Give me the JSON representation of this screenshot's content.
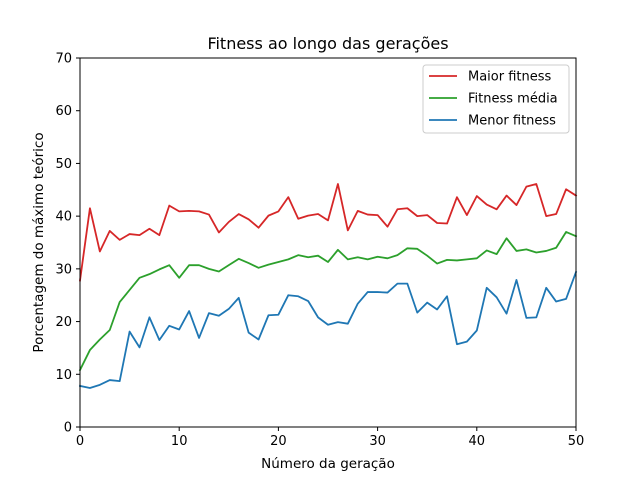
{
  "chart_data": {
    "type": "line",
    "title": "Fitness ao longo das gerações",
    "xlabel": "Número da geração",
    "ylabel": "Porcentagem do máximo teórico",
    "xlim": [
      0,
      50
    ],
    "ylim": [
      0,
      70
    ],
    "xticks": [
      0,
      10,
      20,
      30,
      40,
      50
    ],
    "yticks": [
      0,
      10,
      20,
      30,
      40,
      50,
      60,
      70
    ],
    "grid": false,
    "legend_position": "top-right",
    "x": [
      0,
      1,
      2,
      3,
      4,
      5,
      6,
      7,
      8,
      9,
      10,
      11,
      12,
      13,
      14,
      15,
      16,
      17,
      18,
      19,
      20,
      21,
      22,
      23,
      24,
      25,
      26,
      27,
      28,
      29,
      30,
      31,
      32,
      33,
      34,
      35,
      36,
      37,
      38,
      39,
      40,
      41,
      42,
      43,
      44,
      45,
      46,
      47,
      48,
      49,
      50
    ],
    "series": [
      {
        "name": "Maior fitness",
        "color": "#d62728",
        "values": [
          27.8,
          41.5,
          33.3,
          37.2,
          35.5,
          36.6,
          36.4,
          37.6,
          36.4,
          42.0,
          40.9,
          41.0,
          40.9,
          40.3,
          36.9,
          38.9,
          40.4,
          39.4,
          37.8,
          40.1,
          40.9,
          43.6,
          39.5,
          40.1,
          40.4,
          39.2,
          46.1,
          37.3,
          41.0,
          40.3,
          40.2,
          38.0,
          41.3,
          41.5,
          40.0,
          40.2,
          38.7,
          38.6,
          43.6,
          40.2,
          43.8,
          42.2,
          41.3,
          43.9,
          42.1,
          45.6,
          46.1,
          40.0,
          40.4,
          45.1,
          43.9
        ]
      },
      {
        "name": "Fitness média",
        "color": "#2ca02c",
        "values": [
          10.8,
          14.6,
          16.6,
          18.4,
          23.7,
          26.0,
          28.3,
          29.0,
          29.9,
          30.7,
          28.3,
          30.7,
          30.7,
          30.0,
          29.5,
          30.7,
          31.9,
          31.1,
          30.2,
          30.8,
          31.3,
          31.8,
          32.6,
          32.2,
          32.5,
          31.3,
          33.6,
          31.8,
          32.2,
          31.8,
          32.3,
          32.0,
          32.6,
          33.9,
          33.8,
          32.5,
          31.0,
          31.7,
          31.6,
          31.8,
          32.0,
          33.5,
          32.8,
          35.8,
          33.4,
          33.7,
          33.1,
          33.4,
          34.0,
          37.0,
          36.2
        ]
      },
      {
        "name": "Menor fitness",
        "color": "#1f77b4",
        "values": [
          7.8,
          7.4,
          8.0,
          8.9,
          8.7,
          18.1,
          15.1,
          20.8,
          16.5,
          19.2,
          18.5,
          22.0,
          16.9,
          21.6,
          21.1,
          22.4,
          24.5,
          17.9,
          16.6,
          21.2,
          21.3,
          25.0,
          24.8,
          23.9,
          20.8,
          19.4,
          19.9,
          19.6,
          23.4,
          25.6,
          25.6,
          25.5,
          27.2,
          27.2,
          21.7,
          23.6,
          22.3,
          24.8,
          15.7,
          16.2,
          18.3,
          26.4,
          24.6,
          21.5,
          27.9,
          20.7,
          20.8,
          26.4,
          23.8,
          24.3,
          29.4
        ]
      }
    ]
  }
}
